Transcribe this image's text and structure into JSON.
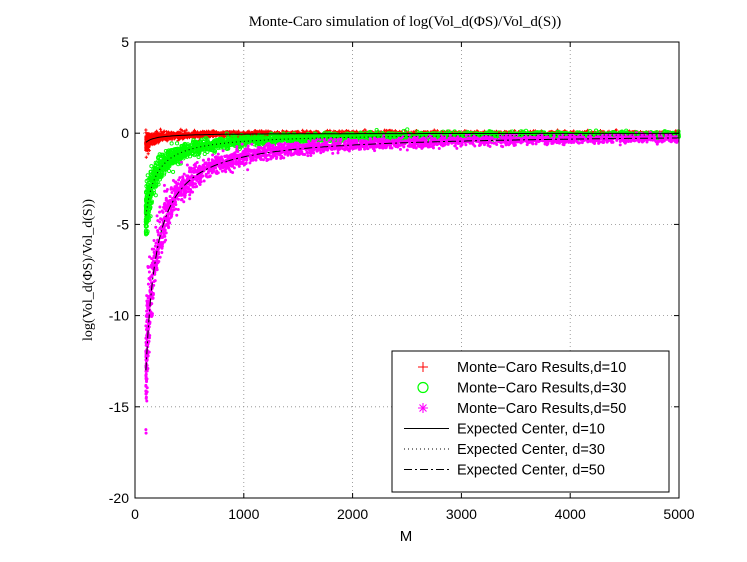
{
  "chart_data": {
    "type": "scatter",
    "title": "Monte-Caro simulation of log(Vol_d(ΦS)/Vol_d(S))",
    "xlabel": "M",
    "ylabel": "log(Vol_d(ΦS)/Vol_d(S))",
    "xlim": [
      0,
      5000
    ],
    "ylim": [
      -20,
      5
    ],
    "xticks": [
      0,
      1000,
      2000,
      3000,
      4000,
      5000
    ],
    "yticks": [
      -20,
      -15,
      -10,
      -5,
      0,
      5
    ],
    "grid": true,
    "legend_position": "bottom-right",
    "series": [
      {
        "name": "Monte−Caro Results,d=10",
        "marker": "+",
        "color": "#ff0000",
        "d": 10,
        "x_range": [
          100,
          5000
        ],
        "center_at": {
          "x": [
            100,
            200,
            300,
            500,
            1000,
            2000,
            5000
          ],
          "y": [
            -0.5,
            -0.27,
            -0.18,
            -0.1,
            -0.05,
            -0.03,
            -0.01
          ]
        }
      },
      {
        "name": "Monte−Caro Results,d=30",
        "marker": "o",
        "color": "#00ff00",
        "d": 30,
        "x_range": [
          100,
          5000
        ],
        "center_at": {
          "x": [
            100,
            200,
            300,
            500,
            1000,
            2000,
            5000
          ],
          "y": [
            -4.5,
            -2.2,
            -1.4,
            -0.9,
            -0.45,
            -0.22,
            -0.09
          ]
        }
      },
      {
        "name": "Monte−Caro Results,d=50",
        "marker": "*",
        "color": "#ff00ff",
        "d": 50,
        "x_range": [
          100,
          5000
        ],
        "center_at": {
          "x": [
            100,
            200,
            300,
            500,
            1000,
            2000,
            5000
          ],
          "y": [
            -13.5,
            -6.2,
            -4.0,
            -2.5,
            -1.3,
            -0.65,
            -0.26
          ]
        }
      },
      {
        "name": "Expected Center, d=10",
        "line": "solid",
        "color": "#000000"
      },
      {
        "name": "Expected Center, d=30",
        "line": "dotted",
        "color": "#000000"
      },
      {
        "name": "Expected Center, d=50",
        "line": "dashdot",
        "color": "#000000"
      }
    ]
  }
}
